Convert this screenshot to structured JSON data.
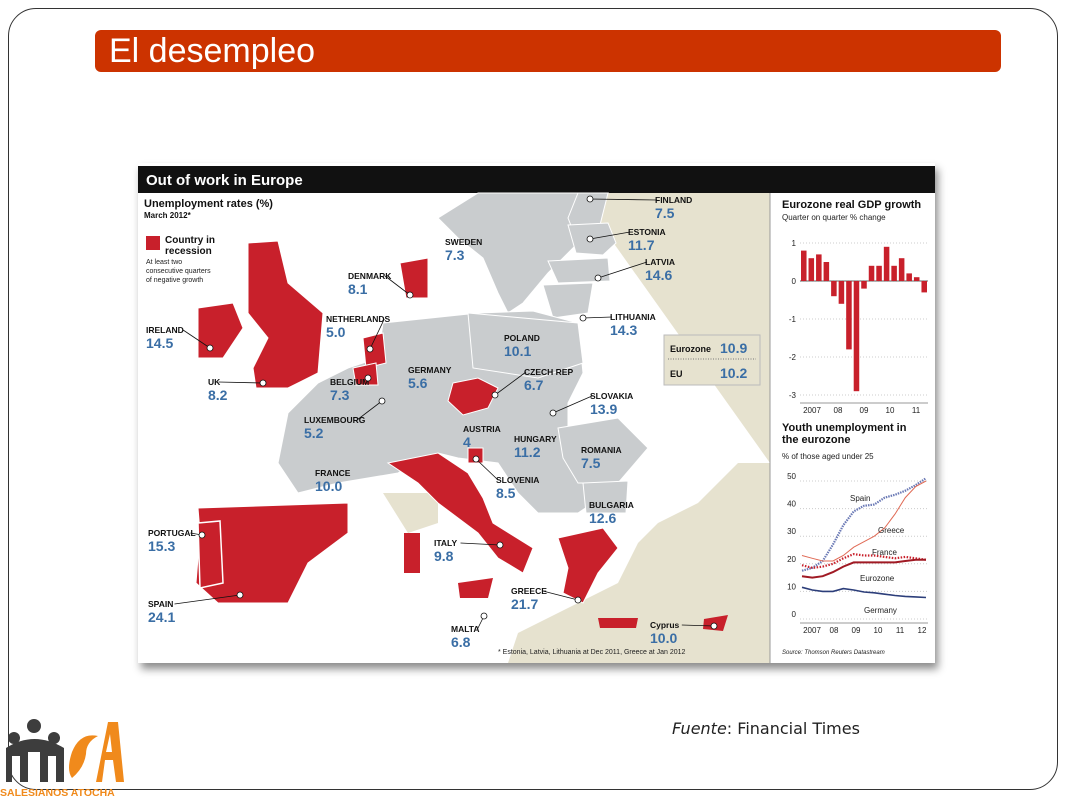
{
  "slide": {
    "title": "El desempleo",
    "source_label": "Fuente",
    "source_sep": ":",
    "source_value": "Financial Times",
    "logo_text": "SALESIANOS ATOCHA"
  },
  "colors": {
    "title_bar": "#cc3300",
    "recession_red": "#c8202b",
    "figure_header": "#111111",
    "value_blue": "#3a6ea5",
    "land_grey": "#c9ccce",
    "sea": "#ffffff",
    "other_land": "#e6e2cf"
  },
  "figure": {
    "header": "Out of work in Europe",
    "subtitle": "Unemployment rates (%)",
    "date_note": "March 2012*",
    "legend_title": "Country in recession",
    "legend_title_l1": "Country in",
    "legend_title_l2": "recession",
    "legend_desc_l1": "At least two",
    "legend_desc_l2": "consecutive quarters",
    "legend_desc_l3": "of negative growth",
    "footnote": "* Estonia, Latvia, Lithuania at Dec 2011, Greece at Jan 2012",
    "eu_box": {
      "eurozone_label": "Eurozone",
      "eurozone_value": "10.9",
      "eu_label": "EU",
      "eu_value": "10.2"
    },
    "countries": [
      {
        "name": "FINLAND",
        "value": "7.5"
      },
      {
        "name": "SWEDEN",
        "value": "7.3"
      },
      {
        "name": "ESTONIA",
        "value": "11.7"
      },
      {
        "name": "LATVIA",
        "value": "14.6"
      },
      {
        "name": "DENMARK",
        "value": "8.1"
      },
      {
        "name": "LITHUANIA",
        "value": "14.3"
      },
      {
        "name": "IRELAND",
        "value": "14.5"
      },
      {
        "name": "NETHERLANDS",
        "value": "5.0"
      },
      {
        "name": "POLAND",
        "value": "10.1"
      },
      {
        "name": "UK",
        "value": "8.2"
      },
      {
        "name": "BELGIUM",
        "value": "7.3"
      },
      {
        "name": "GERMANY",
        "value": "5.6"
      },
      {
        "name": "CZECH REP",
        "value": "6.7"
      },
      {
        "name": "SLOVAKIA",
        "value": "13.9"
      },
      {
        "name": "LUXEMBOURG",
        "value": "5.2"
      },
      {
        "name": "AUSTRIA",
        "value": "4"
      },
      {
        "name": "HUNGARY",
        "value": "11.2"
      },
      {
        "name": "ROMANIA",
        "value": "7.5"
      },
      {
        "name": "FRANCE",
        "value": "10.0"
      },
      {
        "name": "SLOVENIA",
        "value": "8.5"
      },
      {
        "name": "BULGARIA",
        "value": "12.6"
      },
      {
        "name": "PORTUGAL",
        "value": "15.3"
      },
      {
        "name": "ITALY",
        "value": "9.8"
      },
      {
        "name": "SPAIN",
        "value": "24.1"
      },
      {
        "name": "GREECE",
        "value": "21.7"
      },
      {
        "name": "MALTA",
        "value": "6.8"
      },
      {
        "name": "Cyprus",
        "value": "10.0"
      }
    ]
  },
  "chart_data": [
    {
      "type": "bar",
      "title": "Eurozone real GDP growth",
      "subtitle": "Quarter on quarter % change",
      "ylim": [
        -3,
        1
      ],
      "yticks": [
        "1",
        "0",
        "-1",
        "-2",
        "-3"
      ],
      "xtick_labels": [
        "2007",
        "08",
        "09",
        "10",
        "11"
      ],
      "grid": true,
      "values": [
        0.8,
        0.6,
        0.7,
        0.5,
        -0.4,
        -0.6,
        -1.8,
        -2.9,
        -0.2,
        0.4,
        0.4,
        0.9,
        0.4,
        0.6,
        0.2,
        0.1,
        -0.3
      ]
    },
    {
      "type": "line",
      "title": "Youth unemployment in the eurozone",
      "subtitle": "% of those aged under 25",
      "ylim": [
        0,
        50
      ],
      "yticks": [
        "0",
        "10",
        "20",
        "30",
        "40",
        "50"
      ],
      "xtick_labels": [
        "2007",
        "08",
        "09",
        "10",
        "11",
        "12"
      ],
      "grid": true,
      "source": "Source: Thomson Reuters Datastream",
      "series": [
        {
          "name": "Spain",
          "values": [
            17.5,
            18.5,
            21,
            27,
            34,
            39,
            41,
            41.5,
            44,
            45,
            46.5,
            48.5,
            51
          ]
        },
        {
          "name": "Greece",
          "values": [
            23,
            22,
            21,
            21,
            23,
            26,
            28,
            30,
            33,
            38,
            44,
            48,
            50
          ]
        },
        {
          "name": "France",
          "values": [
            19.5,
            18.5,
            19,
            20,
            22,
            23.5,
            23,
            23,
            22.5,
            22,
            22.5,
            22,
            21.5
          ]
        },
        {
          "name": "Eurozone",
          "values": [
            15.5,
            15,
            15.5,
            17,
            19,
            20.5,
            20.5,
            20.5,
            20.5,
            20.5,
            21,
            21.5,
            21.5
          ]
        },
        {
          "name": "Germany",
          "values": [
            11.5,
            10.5,
            10,
            10,
            11,
            10.5,
            9.8,
            9.5,
            9,
            8.5,
            8.2,
            8,
            7.8
          ]
        }
      ]
    }
  ]
}
